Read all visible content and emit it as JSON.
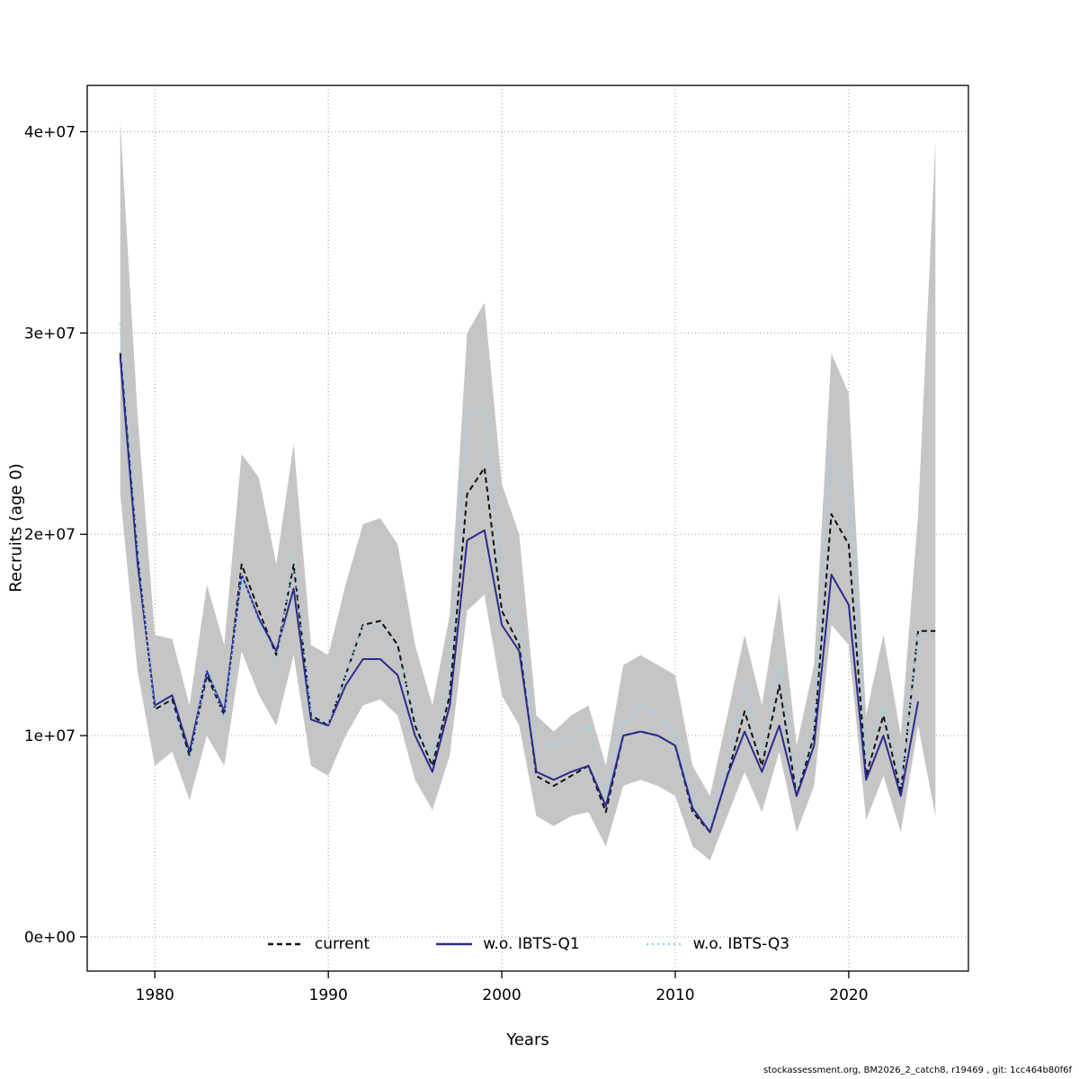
{
  "axes": {
    "xlabel": "Years",
    "ylabel": "Recruits (age 0)"
  },
  "footer": {
    "text": "stockassessment.org, BM2026_2_catch8, r19469 , git: 1cc464b80f6f"
  },
  "chart_data": {
    "type": "line",
    "title": "",
    "xlabel": "Years",
    "ylabel": "Recruits (age 0)",
    "xlim": [
      1976.1,
      2026.9
    ],
    "ylim": [
      -1700000,
      42300000
    ],
    "x_ticks": [
      1980,
      1990,
      2000,
      2010,
      2020
    ],
    "y_ticks": [
      0,
      10000000,
      20000000,
      30000000,
      40000000
    ],
    "y_tick_labels": [
      "0e+00",
      "1e+07",
      "2e+07",
      "3e+07",
      "4e+07"
    ],
    "grid": true,
    "legend_position": "bottom-inside",
    "x": [
      1978,
      1979,
      1980,
      1981,
      1982,
      1983,
      1984,
      1985,
      1986,
      1987,
      1988,
      1989,
      1990,
      1991,
      1992,
      1993,
      1994,
      1995,
      1996,
      1997,
      1998,
      1999,
      2000,
      2001,
      2002,
      2003,
      2004,
      2005,
      2006,
      2007,
      2008,
      2009,
      2010,
      2011,
      2012,
      2013,
      2014,
      2015,
      2016,
      2017,
      2018,
      2019,
      2020,
      2021,
      2022,
      2023,
      2024,
      2025
    ],
    "series": [
      {
        "name": "current",
        "color": "#111111",
        "dash": "6,4",
        "width": 2,
        "values": [
          29000000.0,
          19000000.0,
          11300000.0,
          11800000.0,
          9000000.0,
          13000000.0,
          11000000.0,
          18500000.0,
          16200000.0,
          14000000.0,
          18500000.0,
          11000000.0,
          10500000.0,
          13000000.0,
          15500000.0,
          15700000.0,
          14500000.0,
          10500000.0,
          8500000.0,
          12000000.0,
          22000000.0,
          23300000.0,
          16200000.0,
          14500000.0,
          8000000.0,
          7500000.0,
          8000000.0,
          8500000.0,
          6200000.0,
          10000000.0,
          10200000.0,
          10000000.0,
          9500000.0,
          6200000.0,
          5200000.0,
          8000000.0,
          11200000.0,
          8500000.0,
          12500000.0,
          7000000.0,
          10000000.0,
          21000000.0,
          19500000.0,
          8000000.0,
          11000000.0,
          7200000.0,
          15200000.0,
          15200000.0
        ]
      },
      {
        "name": "w.o. IBTS-Q1",
        "color": "#2b2b8f",
        "dash": "",
        "width": 2,
        "values": [
          28800000.0,
          18600000.0,
          11500000.0,
          12000000.0,
          9200000.0,
          13200000.0,
          11200000.0,
          18000000.0,
          15800000.0,
          14200000.0,
          17300000.0,
          10800000.0,
          10500000.0,
          12500000.0,
          13800000.0,
          13800000.0,
          13000000.0,
          10000000.0,
          8200000.0,
          11500000.0,
          19700000.0,
          20200000.0,
          15500000.0,
          14200000.0,
          8200000.0,
          7800000.0,
          8200000.0,
          8500000.0,
          6500000.0,
          10000000.0,
          10200000.0,
          10000000.0,
          9500000.0,
          6400000.0,
          5200000.0,
          8000000.0,
          10200000.0,
          8200000.0,
          10500000.0,
          7000000.0,
          9500000.0,
          18000000.0,
          16500000.0,
          7800000.0,
          10000000.0,
          7000000.0,
          11700000.0,
          null
        ]
      },
      {
        "name": "w.o. IBTS-Q3",
        "color": "#8fd2f2",
        "dash": "2,4",
        "width": 2,
        "values": [
          30500000.0,
          19500000.0,
          11000000.0,
          11500000.0,
          8600000.0,
          13500000.0,
          10800000.0,
          18000000.0,
          15600000.0,
          13500000.0,
          19000000.0,
          11200000.0,
          10600000.0,
          13000000.0,
          15400000.0,
          15400000.0,
          14000000.0,
          11000000.0,
          9000000.0,
          13000000.0,
          26000000.0,
          26200000.0,
          18000000.0,
          15500000.0,
          9500000.0,
          9500000.0,
          10000000.0,
          10500000.0,
          7000000.0,
          10500000.0,
          11500000.0,
          11000000.0,
          10000000.0,
          6800000.0,
          5500000.0,
          8500000.0,
          12500000.0,
          9000000.0,
          13500000.0,
          7500000.0,
          10500000.0,
          24000000.0,
          22000000.0,
          9000000.0,
          11500000.0,
          7500000.0,
          15000000.0,
          15000000.0
        ]
      }
    ],
    "band": {
      "name": "confidence-band",
      "color": "#c5c5c5",
      "upper": [
        40500000.0,
        26000000.0,
        15000000.0,
        14800000.0,
        11500000.0,
        17500000.0,
        14500000.0,
        24000000.0,
        22800000.0,
        18500000.0,
        24500000.0,
        14500000.0,
        14000000.0,
        17500000.0,
        20500000.0,
        20800000.0,
        19500000.0,
        14500000.0,
        11500000.0,
        16000000.0,
        30000000.0,
        31500000.0,
        22500000.0,
        20000000.0,
        11000000.0,
        10200000.0,
        11000000.0,
        11500000.0,
        8500000.0,
        13500000.0,
        14000000.0,
        13500000.0,
        13000000.0,
        8500000.0,
        7000000.0,
        11000000.0,
        15000000.0,
        11500000.0,
        17000000.0,
        9500000.0,
        13500000.0,
        29000000.0,
        27000000.0,
        11000000.0,
        15000000.0,
        10000000.0,
        21000000.0,
        39500000.0
      ],
      "lower": [
        22000000.0,
        13200000.0,
        8500000.0,
        9200000.0,
        6800000.0,
        10000000.0,
        8500000.0,
        14200000.0,
        12000000.0,
        10500000.0,
        14000000.0,
        8500000.0,
        8000000.0,
        10000000.0,
        11500000.0,
        11800000.0,
        11000000.0,
        7800000.0,
        6300000.0,
        9000000.0,
        16200000.0,
        17000000.0,
        12000000.0,
        10500000.0,
        6000000.0,
        5500000.0,
        6000000.0,
        6200000.0,
        4500000.0,
        7500000.0,
        7800000.0,
        7500000.0,
        7000000.0,
        4500000.0,
        3800000.0,
        6000000.0,
        8200000.0,
        6200000.0,
        9200000.0,
        5200000.0,
        7500000.0,
        15500000.0,
        14500000.0,
        5800000.0,
        8000000.0,
        5200000.0,
        10500000.0,
        6000000.0
      ]
    }
  }
}
